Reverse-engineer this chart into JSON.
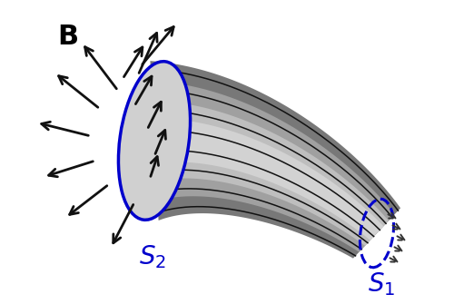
{
  "bg_color": "#ffffff",
  "line_color": "#111111",
  "ellipse_color": "#0000cc",
  "arrow_color": "#111111",
  "label_color": "#0000cc",
  "B_label_color": "#000000",
  "S1_label": "$S_1$",
  "S2_label": "$S_2$",
  "B_label": "B",
  "figsize": [
    5.0,
    3.35
  ],
  "dpi": 100,
  "num_field_lines": 8
}
